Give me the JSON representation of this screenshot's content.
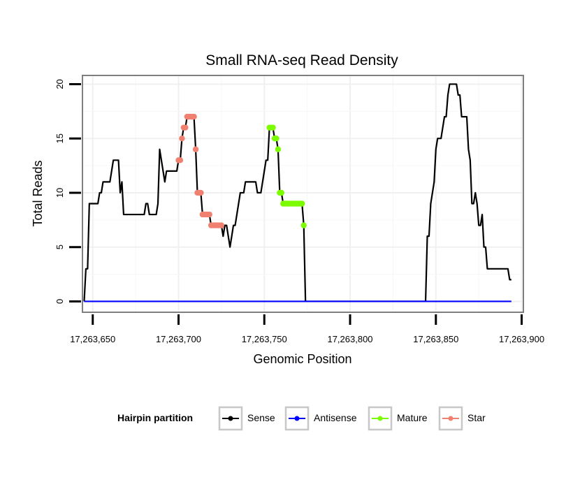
{
  "chart_data": {
    "type": "line",
    "title": "Small RNA-seq Read Density",
    "xlabel": "Genomic Position",
    "ylabel": "Total Reads",
    "xlim": [
      17263644,
      17263901
    ],
    "ylim": [
      -1,
      20.8
    ],
    "x_ticks": [
      17263650,
      17263700,
      17263750,
      17263800,
      17263850,
      17263900
    ],
    "x_tick_labels": [
      "17,263,650",
      "17,263,700",
      "17,263,750",
      "17,263,800",
      "17,263,850",
      "17,263,900"
    ],
    "y_ticks": [
      0,
      5,
      10,
      15,
      20
    ],
    "y_tick_labels": [
      "0",
      "5",
      "10",
      "15",
      "20"
    ],
    "grid": true,
    "legend_title": "Hairpin partition",
    "legend_position": "bottom",
    "series": [
      {
        "name": "Sense",
        "color": "#000000",
        "marker": false,
        "points": [
          [
            17263645,
            0
          ],
          [
            17263646,
            3
          ],
          [
            17263647,
            3
          ],
          [
            17263648,
            9
          ],
          [
            17263649,
            9
          ],
          [
            17263650,
            9
          ],
          [
            17263651,
            9
          ],
          [
            17263652,
            9
          ],
          [
            17263653,
            9
          ],
          [
            17263654,
            10
          ],
          [
            17263655,
            10
          ],
          [
            17263656,
            11
          ],
          [
            17263657,
            11
          ],
          [
            17263658,
            11
          ],
          [
            17263659,
            11
          ],
          [
            17263660,
            11
          ],
          [
            17263661,
            12
          ],
          [
            17263662,
            13
          ],
          [
            17263663,
            13
          ],
          [
            17263664,
            13
          ],
          [
            17263665,
            13
          ],
          [
            17263666,
            10
          ],
          [
            17263667,
            11
          ],
          [
            17263668,
            8
          ],
          [
            17263669,
            8
          ],
          [
            17263670,
            8
          ],
          [
            17263671,
            8
          ],
          [
            17263672,
            8
          ],
          [
            17263673,
            8
          ],
          [
            17263674,
            8
          ],
          [
            17263675,
            8
          ],
          [
            17263676,
            8
          ],
          [
            17263677,
            8
          ],
          [
            17263678,
            8
          ],
          [
            17263679,
            8
          ],
          [
            17263680,
            8
          ],
          [
            17263681,
            9
          ],
          [
            17263682,
            9
          ],
          [
            17263683,
            8
          ],
          [
            17263684,
            8
          ],
          [
            17263685,
            8
          ],
          [
            17263686,
            8
          ],
          [
            17263687,
            8
          ],
          [
            17263688,
            9
          ],
          [
            17263689,
            14
          ],
          [
            17263690,
            13
          ],
          [
            17263691,
            12
          ],
          [
            17263692,
            11
          ],
          [
            17263693,
            12
          ],
          [
            17263694,
            12
          ],
          [
            17263695,
            12
          ],
          [
            17263696,
            12
          ],
          [
            17263697,
            12
          ],
          [
            17263698,
            12
          ],
          [
            17263699,
            12
          ],
          [
            17263700,
            13
          ],
          [
            17263701,
            13
          ],
          [
            17263702,
            15
          ],
          [
            17263703,
            16
          ],
          [
            17263704,
            16
          ],
          [
            17263705,
            17
          ],
          [
            17263706,
            17
          ],
          [
            17263707,
            17
          ],
          [
            17263708,
            17
          ],
          [
            17263709,
            17
          ],
          [
            17263710,
            14
          ],
          [
            17263711,
            10
          ],
          [
            17263712,
            10
          ],
          [
            17263713,
            10
          ],
          [
            17263714,
            8
          ],
          [
            17263715,
            8
          ],
          [
            17263716,
            8
          ],
          [
            17263717,
            8
          ],
          [
            17263718,
            8
          ],
          [
            17263719,
            7
          ],
          [
            17263720,
            7
          ],
          [
            17263721,
            7
          ],
          [
            17263722,
            7
          ],
          [
            17263723,
            7
          ],
          [
            17263724,
            7
          ],
          [
            17263725,
            7
          ],
          [
            17263726,
            6
          ],
          [
            17263727,
            7
          ],
          [
            17263728,
            7
          ],
          [
            17263729,
            6
          ],
          [
            17263730,
            5
          ],
          [
            17263731,
            6
          ],
          [
            17263732,
            7
          ],
          [
            17263733,
            7
          ],
          [
            17263734,
            8
          ],
          [
            17263735,
            9
          ],
          [
            17263736,
            10
          ],
          [
            17263737,
            10
          ],
          [
            17263738,
            10
          ],
          [
            17263739,
            11
          ],
          [
            17263740,
            11
          ],
          [
            17263741,
            11
          ],
          [
            17263742,
            11
          ],
          [
            17263743,
            11
          ],
          [
            17263744,
            11
          ],
          [
            17263745,
            11
          ],
          [
            17263746,
            10
          ],
          [
            17263747,
            10
          ],
          [
            17263748,
            10
          ],
          [
            17263749,
            11
          ],
          [
            17263750,
            12
          ],
          [
            17263751,
            13
          ],
          [
            17263752,
            13
          ],
          [
            17263753,
            16
          ],
          [
            17263754,
            16
          ],
          [
            17263755,
            16
          ],
          [
            17263756,
            15
          ],
          [
            17263757,
            15
          ],
          [
            17263758,
            14
          ],
          [
            17263759,
            10
          ],
          [
            17263760,
            10
          ],
          [
            17263761,
            9
          ],
          [
            17263762,
            9
          ],
          [
            17263763,
            9
          ],
          [
            17263764,
            9
          ],
          [
            17263765,
            9
          ],
          [
            17263766,
            9
          ],
          [
            17263767,
            9
          ],
          [
            17263768,
            9
          ],
          [
            17263769,
            9
          ],
          [
            17263770,
            9
          ],
          [
            17263771,
            9
          ],
          [
            17263772,
            9
          ],
          [
            17263773,
            7
          ],
          [
            17263774,
            0
          ],
          [
            17263775,
            0
          ],
          [
            17263790,
            0
          ],
          [
            17263810,
            0
          ],
          [
            17263830,
            0
          ],
          [
            17263844,
            0
          ],
          [
            17263845,
            6
          ],
          [
            17263846,
            6
          ],
          [
            17263847,
            9
          ],
          [
            17263848,
            10
          ],
          [
            17263849,
            11
          ],
          [
            17263850,
            14
          ],
          [
            17263851,
            15
          ],
          [
            17263852,
            15
          ],
          [
            17263853,
            15
          ],
          [
            17263854,
            16
          ],
          [
            17263855,
            17
          ],
          [
            17263856,
            17
          ],
          [
            17263857,
            19
          ],
          [
            17263858,
            20
          ],
          [
            17263859,
            20
          ],
          [
            17263860,
            20
          ],
          [
            17263861,
            20
          ],
          [
            17263862,
            20
          ],
          [
            17263863,
            19
          ],
          [
            17263864,
            19
          ],
          [
            17263865,
            17
          ],
          [
            17263866,
            17
          ],
          [
            17263867,
            17
          ],
          [
            17263868,
            17
          ],
          [
            17263869,
            14
          ],
          [
            17263870,
            13
          ],
          [
            17263871,
            9
          ],
          [
            17263872,
            9
          ],
          [
            17263873,
            10
          ],
          [
            17263874,
            9
          ],
          [
            17263875,
            7
          ],
          [
            17263876,
            7
          ],
          [
            17263877,
            8
          ],
          [
            17263878,
            5
          ],
          [
            17263879,
            5
          ],
          [
            17263880,
            3
          ],
          [
            17263881,
            3
          ],
          [
            17263882,
            3
          ],
          [
            17263883,
            3
          ],
          [
            17263884,
            3
          ],
          [
            17263885,
            3
          ],
          [
            17263886,
            3
          ],
          [
            17263887,
            3
          ],
          [
            17263888,
            3
          ],
          [
            17263889,
            3
          ],
          [
            17263890,
            3
          ],
          [
            17263891,
            3
          ],
          [
            17263892,
            3
          ],
          [
            17263893,
            2
          ],
          [
            17263894,
            2
          ]
        ]
      },
      {
        "name": "Antisense",
        "color": "#0000ff",
        "marker": false,
        "points": [
          [
            17263645,
            0
          ],
          [
            17263894,
            0
          ]
        ]
      },
      {
        "name": "Mature",
        "color": "#7cfc00",
        "marker": true,
        "points": [
          [
            17263753,
            16
          ],
          [
            17263754,
            16
          ],
          [
            17263755,
            16
          ],
          [
            17263756,
            15
          ],
          [
            17263757,
            15
          ],
          [
            17263758,
            14
          ],
          [
            17263759,
            10
          ],
          [
            17263760,
            10
          ],
          [
            17263761,
            9
          ],
          [
            17263762,
            9
          ],
          [
            17263763,
            9
          ],
          [
            17263764,
            9
          ],
          [
            17263765,
            9
          ],
          [
            17263766,
            9
          ],
          [
            17263767,
            9
          ],
          [
            17263768,
            9
          ],
          [
            17263769,
            9
          ],
          [
            17263770,
            9
          ],
          [
            17263771,
            9
          ],
          [
            17263772,
            9
          ],
          [
            17263773,
            7
          ]
        ]
      },
      {
        "name": "Star",
        "color": "#f08070",
        "marker": true,
        "points": [
          [
            17263700,
            13
          ],
          [
            17263701,
            13
          ],
          [
            17263702,
            15
          ],
          [
            17263703,
            16
          ],
          [
            17263704,
            16
          ],
          [
            17263705,
            17
          ],
          [
            17263706,
            17
          ],
          [
            17263707,
            17
          ],
          [
            17263708,
            17
          ],
          [
            17263709,
            17
          ],
          [
            17263710,
            14
          ],
          [
            17263711,
            10
          ],
          [
            17263712,
            10
          ],
          [
            17263713,
            10
          ],
          [
            17263714,
            8
          ],
          [
            17263715,
            8
          ],
          [
            17263716,
            8
          ],
          [
            17263717,
            8
          ],
          [
            17263718,
            8
          ],
          [
            17263719,
            7
          ],
          [
            17263720,
            7
          ],
          [
            17263721,
            7
          ],
          [
            17263722,
            7
          ],
          [
            17263723,
            7
          ],
          [
            17263724,
            7
          ],
          [
            17263725,
            7
          ]
        ]
      }
    ]
  }
}
